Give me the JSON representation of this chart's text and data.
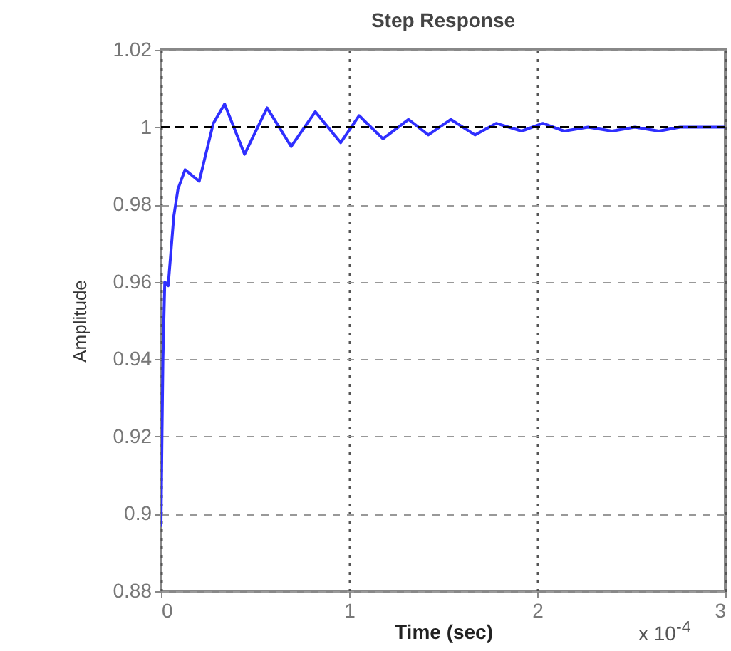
{
  "chart_data": {
    "type": "line",
    "title": "Step Response",
    "xlabel": "Time (sec)",
    "ylabel": "Amplitude",
    "annotations": [
      "x 10$^{-4}$"
    ],
    "series": [
      {
        "color": "#2f2fff",
        "x": [
          0,
          0.005,
          0.01,
          0.02,
          0.038,
          0.068,
          0.09,
          0.128,
          0.203,
          0.278,
          0.338,
          0.444,
          0.564,
          0.692,
          0.82,
          0.955,
          1.053,
          1.18,
          1.316,
          1.421,
          1.541,
          1.669,
          1.782,
          1.917,
          2.03,
          2.143,
          2.27,
          2.398,
          2.519,
          2.647,
          2.759,
          3.0
        ],
        "values": [
          0.897,
          0.92,
          0.94,
          0.96,
          0.959,
          0.977,
          0.984,
          0.989,
          0.986,
          1.001,
          1.006,
          0.993,
          1.005,
          0.995,
          1.004,
          0.996,
          1.003,
          0.997,
          1.002,
          0.998,
          1.002,
          0.998,
          1.001,
          0.999,
          1.001,
          0.999,
          1.0,
          0.999,
          1.0,
          0.999,
          1.0,
          1.0
        ]
      }
    ],
    "xlim": [
      0,
      3
    ],
    "xticks": [
      0,
      1,
      2,
      3
    ],
    "ylim": [
      0.88,
      1.02
    ],
    "yticks": [
      0.88,
      0.9,
      0.92,
      0.94,
      0.96,
      0.98,
      1,
      1.02
    ],
    "grid": true,
    "line_style": "solid",
    "marker": "none",
    "ref_lines": [
      {
        "axis": "y",
        "value": 1,
        "color": "#000000",
        "line_style": "dashed"
      }
    ]
  }
}
